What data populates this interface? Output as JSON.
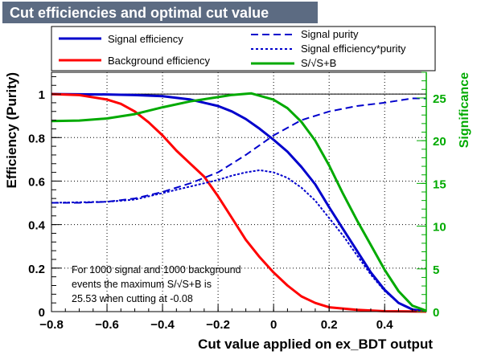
{
  "chart_data": {
    "type": "line",
    "title": "Cut efficiencies and optimal cut value",
    "xlabel": "Cut value applied on ex_BDT output",
    "ylabel": "Efficiency (Purity)",
    "y2label": "Significance",
    "xlim": [
      -0.8,
      0.55
    ],
    "ylim": [
      0,
      1.1
    ],
    "y2lim": [
      0,
      28
    ],
    "xticks": [
      -0.8,
      -0.6,
      -0.4,
      -0.2,
      0,
      0.2,
      0.4
    ],
    "xtick_labels": [
      "−0.8",
      "−0.6",
      "−0.4",
      "−0.2",
      "0",
      "0.2",
      "0.4"
    ],
    "yticks": [
      0,
      0.2,
      0.4,
      0.6,
      0.8,
      1
    ],
    "ytick_labels": [
      "0",
      "0.2",
      "0.4",
      "0.6",
      "0.8",
      "1"
    ],
    "y2ticks": [
      0,
      5,
      10,
      15,
      20,
      25
    ],
    "y2tick_labels": [
      "0",
      "5",
      "10",
      "15",
      "20",
      "25"
    ],
    "grid": true,
    "legend_left": [
      "Signal efficiency",
      "Background efficiency"
    ],
    "legend_right": [
      "Signal purity",
      "Signal efficiency*purity",
      "S/√S+B"
    ],
    "annotation": [
      "For 1000 signal and 1000 background",
      "events the maximum S/√S+B is",
      "25.53 when cutting at -0.08"
    ],
    "series": [
      {
        "name": "Signal efficiency",
        "color": "#0000cc",
        "style": "solid",
        "axis": "left",
        "x": [
          -0.8,
          -0.6,
          -0.5,
          -0.4,
          -0.3,
          -0.2,
          -0.15,
          -0.1,
          -0.05,
          0,
          0.05,
          0.1,
          0.15,
          0.2,
          0.25,
          0.3,
          0.35,
          0.4,
          0.45,
          0.5,
          0.55
        ],
        "y": [
          1.0,
          0.998,
          0.995,
          0.99,
          0.975,
          0.945,
          0.92,
          0.885,
          0.84,
          0.79,
          0.735,
          0.665,
          0.585,
          0.48,
          0.38,
          0.28,
          0.18,
          0.1,
          0.04,
          0.01,
          0.0
        ]
      },
      {
        "name": "Background efficiency",
        "color": "#ff0000",
        "style": "solid",
        "axis": "left",
        "x": [
          -0.8,
          -0.7,
          -0.6,
          -0.55,
          -0.5,
          -0.45,
          -0.4,
          -0.35,
          -0.3,
          -0.25,
          -0.2,
          -0.15,
          -0.1,
          -0.05,
          0,
          0.05,
          0.1,
          0.15,
          0.2,
          0.3,
          0.4,
          0.55
        ],
        "y": [
          1.0,
          0.995,
          0.975,
          0.955,
          0.92,
          0.87,
          0.81,
          0.74,
          0.68,
          0.62,
          0.53,
          0.43,
          0.33,
          0.25,
          0.18,
          0.12,
          0.07,
          0.04,
          0.02,
          0.008,
          0.002,
          0.0
        ]
      },
      {
        "name": "Signal purity",
        "color": "#0000cc",
        "style": "dashed",
        "axis": "left",
        "x": [
          -0.8,
          -0.7,
          -0.6,
          -0.5,
          -0.4,
          -0.3,
          -0.2,
          -0.1,
          0,
          0.1,
          0.2,
          0.3,
          0.4,
          0.5,
          0.55
        ],
        "y": [
          0.5,
          0.5,
          0.505,
          0.52,
          0.55,
          0.59,
          0.64,
          0.72,
          0.81,
          0.88,
          0.92,
          0.945,
          0.96,
          0.98,
          0.98
        ]
      },
      {
        "name": "Signal efficiency*purity",
        "color": "#0000cc",
        "style": "dotted",
        "axis": "left",
        "x": [
          -0.8,
          -0.6,
          -0.5,
          -0.4,
          -0.3,
          -0.2,
          -0.15,
          -0.1,
          -0.05,
          0,
          0.05,
          0.1,
          0.15,
          0.2,
          0.25,
          0.3,
          0.35,
          0.4,
          0.45,
          0.5,
          0.55
        ],
        "y": [
          0.5,
          0.505,
          0.515,
          0.545,
          0.575,
          0.605,
          0.625,
          0.64,
          0.65,
          0.64,
          0.615,
          0.57,
          0.51,
          0.43,
          0.35,
          0.26,
          0.17,
          0.095,
          0.04,
          0.01,
          0.0
        ]
      },
      {
        "name": "S/√S+B",
        "color": "#00aa00",
        "style": "solid",
        "axis": "right",
        "x": [
          -0.8,
          -0.7,
          -0.6,
          -0.5,
          -0.4,
          -0.3,
          -0.2,
          -0.15,
          -0.08,
          0,
          0.05,
          0.1,
          0.15,
          0.2,
          0.25,
          0.3,
          0.35,
          0.4,
          0.45,
          0.5,
          0.55
        ],
        "y": [
          22.3,
          22.35,
          22.6,
          23.1,
          23.9,
          24.6,
          25.1,
          25.35,
          25.53,
          24.8,
          23.8,
          22.2,
          20.0,
          17.1,
          13.8,
          10.7,
          7.8,
          4.9,
          2.4,
          0.7,
          0.1
        ]
      }
    ]
  }
}
